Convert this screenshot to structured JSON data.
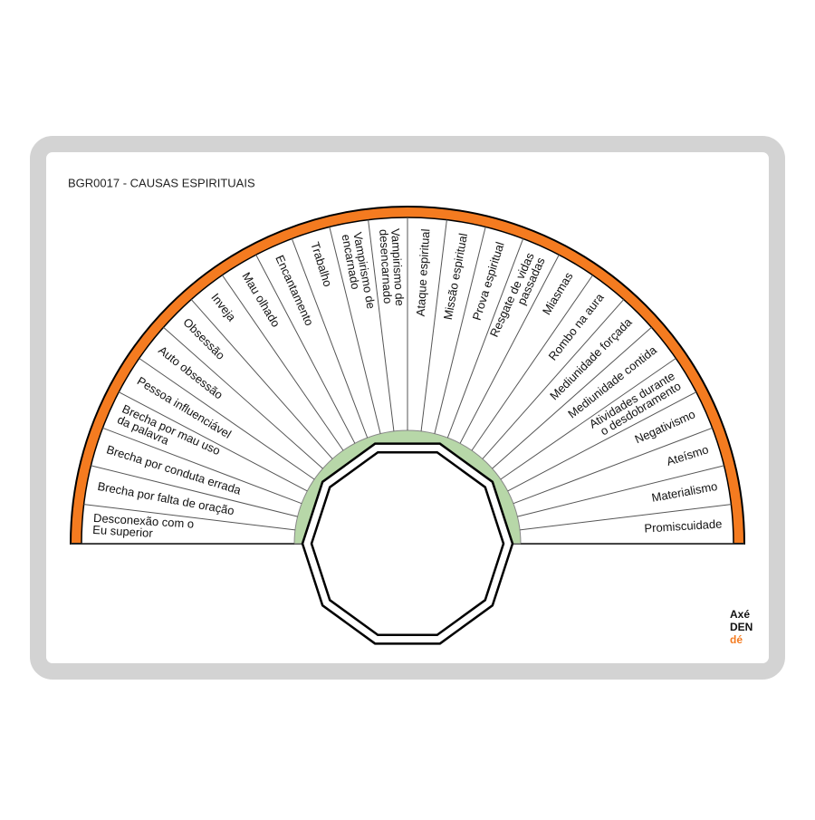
{
  "header": {
    "title": "BGR0017 - CAUSAS ESPIRITUAIS"
  },
  "segments": [
    {
      "lines": [
        "Desconexão com o",
        "Eu superior"
      ]
    },
    {
      "lines": [
        "Brecha por falta de oração"
      ]
    },
    {
      "lines": [
        "Brecha por conduta errada"
      ]
    },
    {
      "lines": [
        "Brecha por mau uso",
        "da palavra"
      ]
    },
    {
      "lines": [
        "Pessoa influenciável"
      ]
    },
    {
      "lines": [
        "Auto obsessão"
      ]
    },
    {
      "lines": [
        "Obsessão"
      ]
    },
    {
      "lines": [
        "Inveja"
      ]
    },
    {
      "lines": [
        "Mau olhado"
      ]
    },
    {
      "lines": [
        "Encantamento"
      ]
    },
    {
      "lines": [
        "Trabalho"
      ]
    },
    {
      "lines": [
        "Vampirismo de",
        "encarnado"
      ]
    },
    {
      "lines": [
        "Vampirismo de",
        "desencarnado"
      ]
    },
    {
      "lines": [
        "Ataque espiritual"
      ]
    },
    {
      "lines": [
        "Missão espiritual"
      ]
    },
    {
      "lines": [
        "Prova espiritual"
      ]
    },
    {
      "lines": [
        "Resgate de vidas",
        "passadas"
      ]
    },
    {
      "lines": [
        "Miasmas"
      ]
    },
    {
      "lines": [
        "Rombo na aura"
      ]
    },
    {
      "lines": [
        "Mediunidade forçada"
      ]
    },
    {
      "lines": [
        "Mediunidade contida"
      ]
    },
    {
      "lines": [
        "Atividades durante",
        "o desdobramento"
      ]
    },
    {
      "lines": [
        "Negativismo"
      ]
    },
    {
      "lines": [
        "Ateísmo"
      ]
    },
    {
      "lines": [
        "Materialismo"
      ]
    },
    {
      "lines": [
        "Promiscuidade"
      ]
    }
  ],
  "logo": {
    "lines": [
      "Axé",
      "DEN",
      "dé"
    ]
  }
}
